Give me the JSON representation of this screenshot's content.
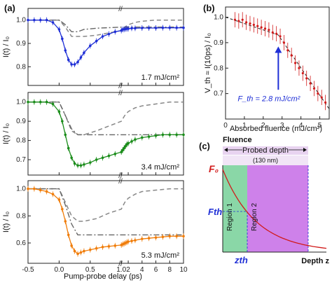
{
  "panel_labels": {
    "a": "(a)",
    "b": "(b)",
    "c": "(c)"
  },
  "chart_data": [
    {
      "id": "a1",
      "type": "line",
      "color": "#1f2fd6",
      "ylabel": "I(t) / I₀",
      "fluence_label": "1.7 mJ/cm²",
      "xlim": [
        -0.5,
        10
      ],
      "ylim": [
        0.72,
        1.05
      ],
      "yticks": [
        "0.8",
        "0.9",
        "1.0"
      ],
      "x": [
        -0.5,
        -0.4,
        -0.3,
        -0.2,
        -0.1,
        0.0,
        0.05,
        0.1,
        0.15,
        0.2,
        0.25,
        0.3,
        0.35,
        0.4,
        0.5,
        0.6,
        0.7,
        0.8,
        0.9,
        1.0,
        1.2,
        1.4,
        1.6,
        1.8,
        2.0,
        2.5,
        3.0,
        4.0,
        5.0,
        6.0,
        7.0,
        8.0,
        9.0,
        10.0
      ],
      "y": [
        1.0,
        1.0,
        1.0,
        1.0,
        0.99,
        0.96,
        0.92,
        0.87,
        0.83,
        0.81,
        0.81,
        0.82,
        0.84,
        0.86,
        0.89,
        0.91,
        0.93,
        0.94,
        0.95,
        0.955,
        0.96,
        0.96,
        0.962,
        0.963,
        0.963,
        0.965,
        0.965,
        0.966,
        0.966,
        0.966,
        0.967,
        0.967,
        0.967,
        0.967
      ],
      "ref_x": [
        -0.5,
        0.0,
        0.1,
        0.2,
        0.3,
        0.4,
        0.6,
        0.8,
        1.0,
        1.5,
        2.0,
        3.0,
        4.0,
        6.0,
        8.0,
        10.0
      ],
      "ref_y": [
        1.0,
        1.0,
        0.97,
        0.93,
        0.93,
        0.93,
        0.935,
        0.945,
        0.955,
        0.97,
        0.98,
        0.99,
        0.995,
        1.0,
        1.0,
        1.0
      ],
      "dd_x": [
        -0.5,
        0.0,
        0.1,
        0.2,
        0.3,
        0.4,
        0.6,
        1.0,
        2.0,
        4.0,
        6.0,
        8.0,
        10.0
      ],
      "dd_y": [
        1.0,
        1.0,
        0.98,
        0.95,
        0.95,
        0.96,
        0.965,
        0.97,
        0.97,
        0.97,
        0.97,
        0.97,
        0.97
      ]
    },
    {
      "id": "a2",
      "type": "line",
      "color": "#1a8c1a",
      "ylabel": "I(t) / I₀",
      "fluence_label": "3.4 mJ/cm²",
      "xlim": [
        -0.5,
        10
      ],
      "ylim": [
        0.62,
        1.05
      ],
      "yticks": [
        "0.7",
        "0.8",
        "0.9",
        "1.0"
      ],
      "x": [
        -0.5,
        -0.4,
        -0.3,
        -0.2,
        -0.1,
        0.0,
        0.05,
        0.1,
        0.15,
        0.2,
        0.25,
        0.3,
        0.35,
        0.4,
        0.5,
        0.6,
        0.7,
        0.8,
        0.9,
        1.0,
        1.2,
        1.4,
        1.6,
        1.8,
        2.0,
        2.5,
        3.0,
        4.0,
        5.0,
        6.0,
        7.0,
        8.0,
        9.0,
        10.0
      ],
      "y": [
        1.0,
        1.0,
        1.0,
        1.0,
        0.99,
        0.95,
        0.9,
        0.83,
        0.76,
        0.71,
        0.68,
        0.67,
        0.67,
        0.675,
        0.685,
        0.7,
        0.71,
        0.72,
        0.73,
        0.74,
        0.75,
        0.76,
        0.77,
        0.78,
        0.785,
        0.795,
        0.805,
        0.815,
        0.82,
        0.825,
        0.83,
        0.83,
        0.83,
        0.83
      ],
      "ref_x": [
        -0.5,
        0.0,
        0.1,
        0.2,
        0.3,
        0.4,
        0.6,
        0.8,
        1.0,
        1.5,
        2.0,
        3.0,
        4.0,
        6.0,
        8.0,
        10.0
      ],
      "ref_y": [
        1.0,
        1.0,
        0.93,
        0.85,
        0.83,
        0.83,
        0.85,
        0.875,
        0.9,
        0.93,
        0.95,
        0.97,
        0.98,
        0.99,
        1.0,
        1.0
      ],
      "dd_x": [
        -0.5,
        0.0,
        0.1,
        0.2,
        0.3,
        0.4,
        0.6,
        1.0,
        2.0,
        4.0,
        6.0,
        8.0,
        10.0
      ],
      "dd_y": [
        1.0,
        1.0,
        0.93,
        0.86,
        0.83,
        0.83,
        0.83,
        0.83,
        0.83,
        0.83,
        0.83,
        0.83,
        0.83
      ]
    },
    {
      "id": "a3",
      "type": "line",
      "color": "#f07d0a",
      "ylabel": "I(t) / I₀",
      "fluence_label": "5.3 mJ/cm²",
      "xlim": [
        -0.5,
        10
      ],
      "ylim": [
        0.45,
        1.06
      ],
      "yticks": [
        "0.6",
        "0.8",
        "1.0"
      ],
      "xticks": [
        "-0.5",
        "0.0",
        "0.5",
        "1.0",
        "2",
        "4",
        "6",
        "8",
        "10"
      ],
      "xlabel": "Pump-probe delay (ps)",
      "x": [
        -0.5,
        -0.4,
        -0.3,
        -0.2,
        -0.1,
        0.0,
        0.05,
        0.1,
        0.15,
        0.2,
        0.25,
        0.3,
        0.35,
        0.4,
        0.5,
        0.6,
        0.7,
        0.8,
        0.9,
        1.0,
        1.2,
        1.4,
        1.6,
        1.8,
        2.0,
        2.5,
        3.0,
        4.0,
        5.0,
        6.0,
        7.0,
        8.0,
        9.0,
        10.0
      ],
      "y": [
        1.0,
        1.0,
        0.99,
        0.98,
        0.96,
        0.92,
        0.85,
        0.76,
        0.66,
        0.58,
        0.54,
        0.52,
        0.53,
        0.54,
        0.55,
        0.56,
        0.57,
        0.575,
        0.58,
        0.585,
        0.59,
        0.595,
        0.6,
        0.605,
        0.61,
        0.615,
        0.62,
        0.63,
        0.635,
        0.64,
        0.645,
        0.65,
        0.65,
        0.65
      ],
      "ref_x": [
        -0.5,
        0.0,
        0.1,
        0.2,
        0.3,
        0.4,
        0.6,
        0.8,
        1.0,
        1.5,
        2.0,
        3.0,
        4.0,
        6.0,
        8.0,
        10.0
      ],
      "ref_y": [
        1.0,
        1.0,
        0.9,
        0.8,
        0.76,
        0.76,
        0.78,
        0.82,
        0.85,
        0.9,
        0.93,
        0.96,
        0.98,
        0.99,
        1.0,
        1.0
      ],
      "dd_x": [
        -0.5,
        0.0,
        0.1,
        0.2,
        0.3,
        0.4,
        0.6,
        1.0,
        2.0,
        4.0,
        6.0,
        8.0,
        10.0
      ],
      "dd_y": [
        1.0,
        1.0,
        0.88,
        0.74,
        0.66,
        0.66,
        0.66,
        0.66,
        0.66,
        0.66,
        0.66,
        0.66,
        0.66
      ]
    },
    {
      "id": "b",
      "type": "scatter",
      "color": "#d11a1a",
      "ylabel": "V_th ≈ I(10ps) / I₀",
      "xlabel": "Absorbed fluence (mJ/cm²)",
      "annotation": "F_th = 2.8 mJ/cm²",
      "annotation_color": "#1f2fd6",
      "xlim": [
        0,
        5.5
      ],
      "ylim": [
        0.6,
        1.04
      ],
      "xticks": [
        0,
        1,
        2,
        3,
        4,
        5
      ],
      "yticks": [
        0.7,
        0.8,
        0.9,
        1.0
      ],
      "x": [
        0.5,
        0.7,
        0.9,
        1.1,
        1.3,
        1.5,
        1.7,
        1.9,
        2.1,
        2.3,
        2.5,
        2.7,
        2.9,
        3.1,
        3.3,
        3.5,
        3.7,
        3.9,
        4.1,
        4.3,
        4.5,
        4.7,
        4.9,
        5.1,
        5.3
      ],
      "y": [
        0.99,
        0.985,
        0.99,
        0.98,
        0.975,
        0.97,
        0.965,
        0.96,
        0.955,
        0.95,
        0.94,
        0.935,
        0.925,
        0.9,
        0.87,
        0.85,
        0.82,
        0.8,
        0.78,
        0.76,
        0.74,
        0.72,
        0.7,
        0.685,
        0.665
      ],
      "err": 0.03,
      "fit_x": [
        0,
        2.8,
        5.5
      ],
      "fit_y": [
        1.0,
        0.93,
        0.64
      ]
    }
  ],
  "panel_c": {
    "title": "Fluence",
    "f0": "F₀",
    "fth": "Fth",
    "zth": "zth",
    "depth": "Depth z",
    "probed": "Probed depth",
    "probed_nm": "(130 nm)",
    "region1": "Region 1",
    "region2": "Region 2",
    "colors": {
      "region1": "#63c98a",
      "region2": "#c66be6",
      "band": "#e8d3f0",
      "curve": "#d11a1a",
      "marker": "#1f2fd6"
    }
  }
}
